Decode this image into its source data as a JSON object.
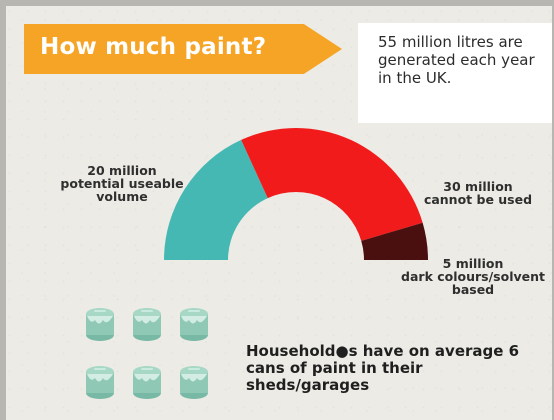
{
  "header": {
    "title": "How much paint?",
    "info": "55 million litres are\ngenerated each year\nin the UK."
  },
  "chart_data": {
    "type": "pie",
    "series": [
      {
        "name": "20 million\npotential useable\nvolume",
        "value": 20,
        "color": "#45b8b3"
      },
      {
        "name": "30 million\ncannot be used",
        "value": 30,
        "color": "#f21b1b"
      },
      {
        "name": "5 million\ndark colours/solvent\nbased",
        "value": 5,
        "color": "#4a1010"
      }
    ],
    "total": 55,
    "layout": "half-donut"
  },
  "labels": {
    "left": "20 million\npotential useable\nvolume",
    "right": "30 million\ncannot be used",
    "bottom": "5 million\ndark colours/solvent\nbased"
  },
  "footer": {
    "households_text": "Household●s have on average 6\ncans of paint in their\nsheds/garages",
    "can_count": 6
  },
  "colors": {
    "banner": "#f5a425",
    "background": "#ecebe6",
    "text": "#2c2c2c",
    "can": "#8fc9b6"
  },
  "icons": {
    "can": "paint-can-icon"
  }
}
